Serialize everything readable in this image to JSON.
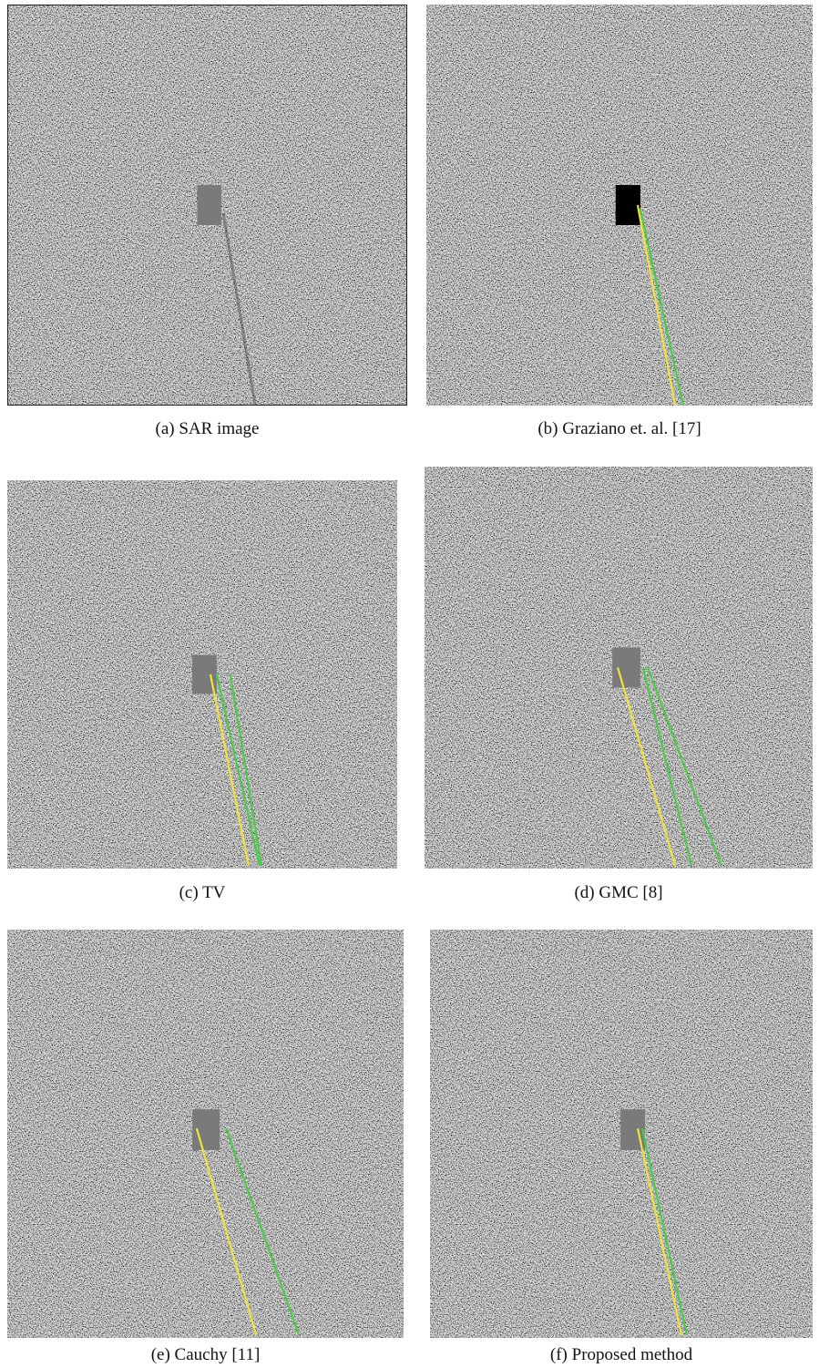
{
  "figure": {
    "panels": [
      {
        "caption": "(a) SAR image"
      },
      {
        "caption": "(b) Graziano et. al. [17]"
      },
      {
        "caption": "(c) TV"
      },
      {
        "caption": "(d) GMC [8]"
      },
      {
        "caption": "(e) Cauchy [11]"
      },
      {
        "caption": "(f) Proposed method"
      }
    ]
  }
}
